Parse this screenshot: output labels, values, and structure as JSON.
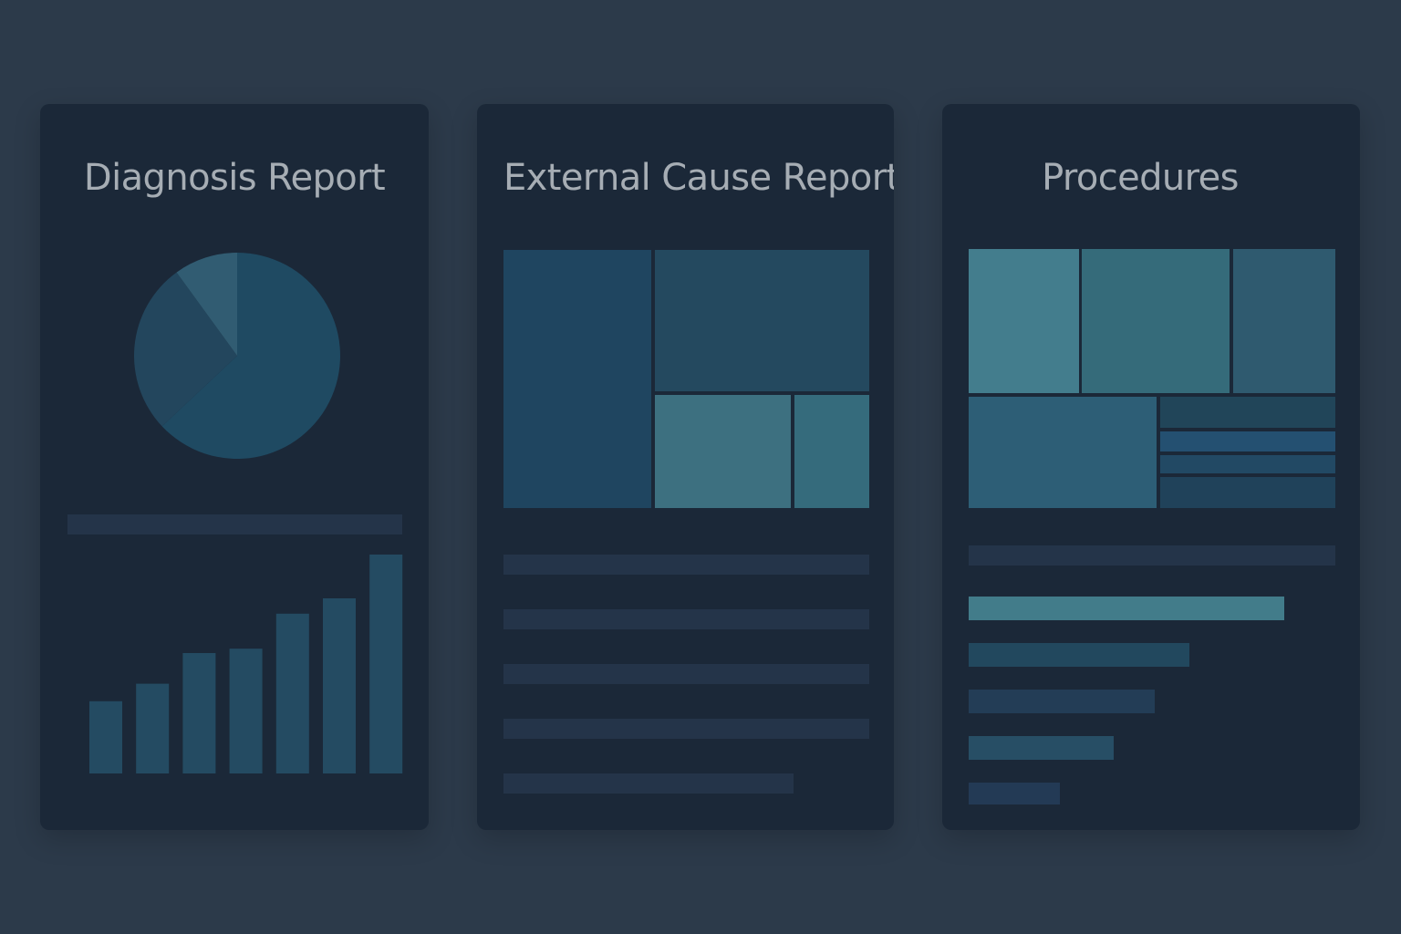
{
  "cards": [
    {
      "title": "Diagnosis Report",
      "pie": {
        "slices": [
          0.63,
          0.27,
          0.1
        ],
        "colors": [
          "#1f4a62",
          "#23465d",
          "#315c72"
        ]
      },
      "bars": {
        "values": [
          0.33,
          0.41,
          0.55,
          0.57,
          0.73,
          0.8,
          1.0
        ],
        "color": "#244b62"
      }
    },
    {
      "title": "External Cause Report",
      "treemap_colors": [
        "#1f4560",
        "#24495f",
        "#3d7080",
        "#356b7c"
      ],
      "lines_count": 5
    },
    {
      "title": "Procedures",
      "treemap_colors": [
        "#437d8d",
        "#356b7a",
        "#2f5a6f",
        "#2d5e76",
        "#214559",
        "#245071",
        "#224964",
        "#20425a"
      ],
      "hbars": {
        "values": [
          1.0,
          0.7,
          0.59,
          0.46,
          0.29
        ],
        "colors": [
          "#427c8a",
          "#22485e",
          "#233d56",
          "#274e65",
          "#233a55"
        ]
      }
    }
  ]
}
